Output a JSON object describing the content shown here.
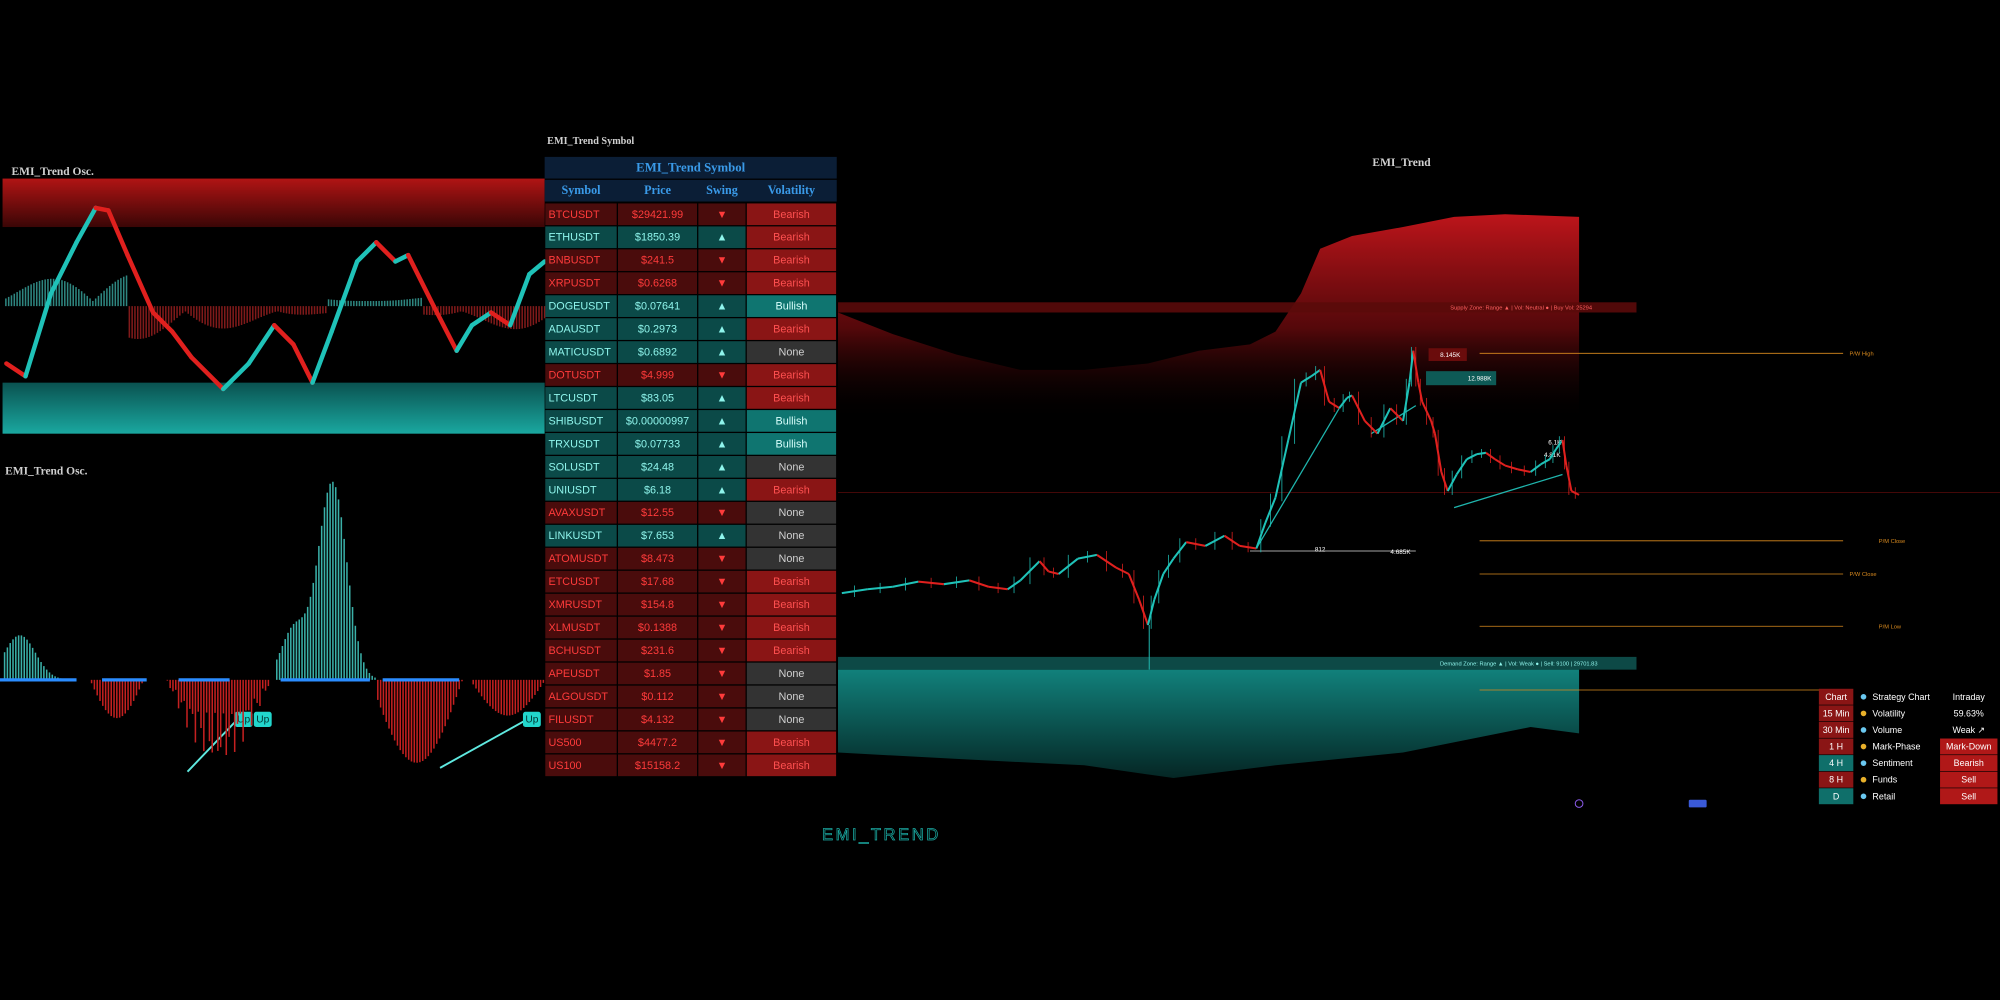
{
  "oscillator_top": {
    "title": "EMI_Trend Osc."
  },
  "oscillator_bottom": {
    "title": "EMI_Trend Osc.",
    "signals": [
      "Up",
      "Up",
      "Up"
    ]
  },
  "symbol_panel": {
    "caption": "EMI_Trend Symbol",
    "watermark": "EMI_TREND",
    "table": {
      "title": "EMI_Trend Symbol",
      "columns": [
        "Symbol",
        "Price",
        "Swing",
        "Volatility"
      ],
      "rows": [
        {
          "symbol": "BTCUSDT",
          "price": "$29421.99",
          "swing": "▼",
          "volatility": "Bearish",
          "color": "#ff3b3b",
          "background": "#4a0c0c",
          "vol_color": "#ff5050",
          "vol_background": "#8a1515"
        },
        {
          "symbol": "ETHUSDT",
          "price": "$1850.39",
          "swing": "▲",
          "volatility": "Bearish",
          "color": "#8ff5ec",
          "background": "#0b4a48",
          "vol_color": "#ff5050",
          "vol_background": "#8a1515"
        },
        {
          "symbol": "BNBUSDT",
          "price": "$241.5",
          "swing": "▼",
          "volatility": "Bearish",
          "color": "#ff3b3b",
          "background": "#4a0c0c",
          "vol_color": "#ff5050",
          "vol_background": "#8a1515"
        },
        {
          "symbol": "XRPUSDT",
          "price": "$0.6268",
          "swing": "▼",
          "volatility": "Bearish",
          "color": "#ff3b3b",
          "background": "#4a0c0c",
          "vol_color": "#ff5050",
          "vol_background": "#8a1515"
        },
        {
          "symbol": "DOGEUSDT",
          "price": "$0.07641",
          "swing": "▲",
          "volatility": "Bullish",
          "color": "#8ff5ec",
          "background": "#0b4a48",
          "vol_color": "#d8fffc",
          "vol_background": "#0f7570"
        },
        {
          "symbol": "ADAUSDT",
          "price": "$0.2973",
          "swing": "▲",
          "volatility": "Bearish",
          "color": "#8ff5ec",
          "background": "#0b4a48",
          "vol_color": "#ff5050",
          "vol_background": "#8a1515"
        },
        {
          "symbol": "MATICUSDT",
          "price": "$0.6892",
          "swing": "▲",
          "volatility": "None",
          "color": "#8ff5ec",
          "background": "#0b4a48",
          "vol_color": "#d0d0d0",
          "vol_background": "#333333"
        },
        {
          "symbol": "DOTUSDT",
          "price": "$4.999",
          "swing": "▼",
          "volatility": "Bearish",
          "color": "#ff3b3b",
          "background": "#4a0c0c",
          "vol_color": "#ff5050",
          "vol_background": "#8a1515"
        },
        {
          "symbol": "LTCUSDT",
          "price": "$83.05",
          "swing": "▲",
          "volatility": "Bearish",
          "color": "#8ff5ec",
          "background": "#0b4a48",
          "vol_color": "#ff5050",
          "vol_background": "#8a1515"
        },
        {
          "symbol": "SHIBUSDT",
          "price": "$0.00000997",
          "swing": "▲",
          "volatility": "Bullish",
          "color": "#8ff5ec",
          "background": "#0b4a48",
          "vol_color": "#d8fffc",
          "vol_background": "#0f7570"
        },
        {
          "symbol": "TRXUSDT",
          "price": "$0.07733",
          "swing": "▲",
          "volatility": "Bullish",
          "color": "#8ff5ec",
          "background": "#0b4a48",
          "vol_color": "#d8fffc",
          "vol_background": "#0f7570"
        },
        {
          "symbol": "SOLUSDT",
          "price": "$24.48",
          "swing": "▲",
          "volatility": "None",
          "color": "#8ff5ec",
          "background": "#0b4a48",
          "vol_color": "#d0d0d0",
          "vol_background": "#333333"
        },
        {
          "symbol": "UNIUSDT",
          "price": "$6.18",
          "swing": "▲",
          "volatility": "Bearish",
          "color": "#8ff5ec",
          "background": "#0b4a48",
          "vol_color": "#ff5050",
          "vol_background": "#8a1515"
        },
        {
          "symbol": "AVAXUSDT",
          "price": "$12.55",
          "swing": "▼",
          "volatility": "None",
          "color": "#ff3b3b",
          "background": "#4a0c0c",
          "vol_color": "#d0d0d0",
          "vol_background": "#333333"
        },
        {
          "symbol": "LINKUSDT",
          "price": "$7.653",
          "swing": "▲",
          "volatility": "None",
          "color": "#8ff5ec",
          "background": "#0b4a48",
          "vol_color": "#d0d0d0",
          "vol_background": "#333333"
        },
        {
          "symbol": "ATOMUSDT",
          "price": "$8.473",
          "swing": "▼",
          "volatility": "None",
          "color": "#ff3b3b",
          "background": "#4a0c0c",
          "vol_color": "#d0d0d0",
          "vol_background": "#333333"
        },
        {
          "symbol": "ETCUSDT",
          "price": "$17.68",
          "swing": "▼",
          "volatility": "Bearish",
          "color": "#ff3b3b",
          "background": "#4a0c0c",
          "vol_color": "#ff5050",
          "vol_background": "#8a1515"
        },
        {
          "symbol": "XMRUSDT",
          "price": "$154.8",
          "swing": "▼",
          "volatility": "Bearish",
          "color": "#ff3b3b",
          "background": "#4a0c0c",
          "vol_color": "#ff5050",
          "vol_background": "#8a1515"
        },
        {
          "symbol": "XLMUSDT",
          "price": "$0.1388",
          "swing": "▼",
          "volatility": "Bearish",
          "color": "#ff3b3b",
          "background": "#4a0c0c",
          "vol_color": "#ff5050",
          "vol_background": "#8a1515"
        },
        {
          "symbol": "BCHUSDT",
          "price": "$231.6",
          "swing": "▼",
          "volatility": "Bearish",
          "color": "#ff3b3b",
          "background": "#4a0c0c",
          "vol_color": "#ff5050",
          "vol_background": "#8a1515"
        },
        {
          "symbol": "APEUSDT",
          "price": "$1.85",
          "swing": "▼",
          "volatility": "None",
          "color": "#ff3b3b",
          "background": "#4a0c0c",
          "vol_color": "#d0d0d0",
          "vol_background": "#333333"
        },
        {
          "symbol": "ALGOUSDT",
          "price": "$0.112",
          "swing": "▼",
          "volatility": "None",
          "color": "#ff3b3b",
          "background": "#4a0c0c",
          "vol_color": "#d0d0d0",
          "vol_background": "#333333"
        },
        {
          "symbol": "FILUSDT",
          "price": "$4.132",
          "swing": "▼",
          "volatility": "None",
          "color": "#ff3b3b",
          "background": "#4a0c0c",
          "vol_color": "#d0d0d0",
          "vol_background": "#333333"
        },
        {
          "symbol": "US500",
          "price": "$4477.2",
          "swing": "▼",
          "volatility": "Bearish",
          "color": "#ff3b3b",
          "background": "#4a0c0c",
          "vol_color": "#ff5050",
          "vol_background": "#8a1515"
        },
        {
          "symbol": "US100",
          "price": "$15158.2",
          "swing": "▼",
          "volatility": "Bearish",
          "color": "#ff3b3b",
          "background": "#4a0c0c",
          "vol_color": "#ff5050",
          "vol_background": "#8a1515"
        }
      ]
    }
  },
  "main_chart": {
    "title": "EMI_Trend",
    "supply_zone": "Supply Zone: Range ▲ | Vol: Neutral ● | Buy Vol: 25294",
    "demand_zone": "Demand Zone: Range ▲ | Vol: Weak ● | Sell: 9100 | 29701.83",
    "labels": [
      "8.145K",
      "12.988K",
      "812",
      "4.685K",
      "6.1K",
      "4.81K"
    ],
    "levels": [
      "P/W High",
      "P/M Close",
      "P/W Close",
      "P/M Low"
    ]
  },
  "dashboard": {
    "rows": [
      {
        "timeframe": "Chart",
        "timeframe_color": "#8a1515",
        "label": "Strategy Chart",
        "value": "Intraday",
        "value_color": "#000000"
      },
      {
        "timeframe": "15 Min",
        "timeframe_color": "#8a1515",
        "label": "Volatility",
        "value": "59.63%",
        "value_color": "#000000"
      },
      {
        "timeframe": "30 Min",
        "timeframe_color": "#8a1515",
        "label": "Volume",
        "value": "Weak ↗",
        "value_color": "#000000"
      },
      {
        "timeframe": "1 H",
        "timeframe_color": "#8a1515",
        "label": "Mark-Phase",
        "value": "Mark-Down",
        "value_color": "#b01818"
      },
      {
        "timeframe": "4 H",
        "timeframe_color": "#0f6f6a",
        "label": "Sentiment",
        "value": "Bearish",
        "value_color": "#b01818"
      },
      {
        "timeframe": "8 H",
        "timeframe_color": "#8a1515",
        "label": "Funds",
        "value": "Sell",
        "value_color": "#b01818"
      },
      {
        "timeframe": "D",
        "timeframe_color": "#0f6f6a",
        "label": "Retail",
        "value": "Sell",
        "value_color": "#b01818"
      }
    ]
  }
}
